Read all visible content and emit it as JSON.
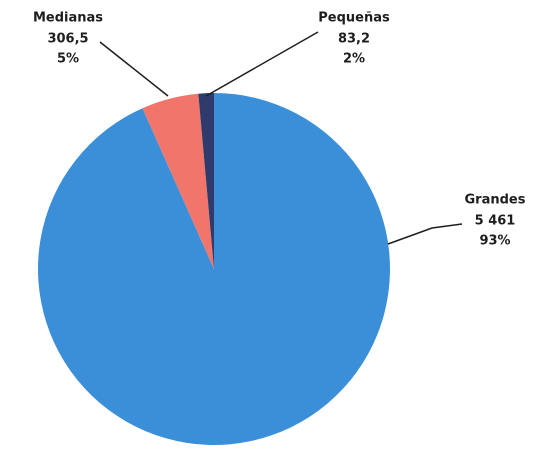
{
  "chart_data": {
    "type": "pie",
    "categories": [
      "Grandes",
      "Medianas",
      "Pequeñas"
    ],
    "values": [
      5461,
      306.5,
      83.2
    ],
    "value_labels": [
      "5 461",
      "306,5",
      "83,2"
    ],
    "percent_labels": [
      "93%",
      "5%",
      "2%"
    ],
    "colors": [
      "#3b8fd8",
      "#f2756b",
      "#2f3b6b"
    ]
  }
}
